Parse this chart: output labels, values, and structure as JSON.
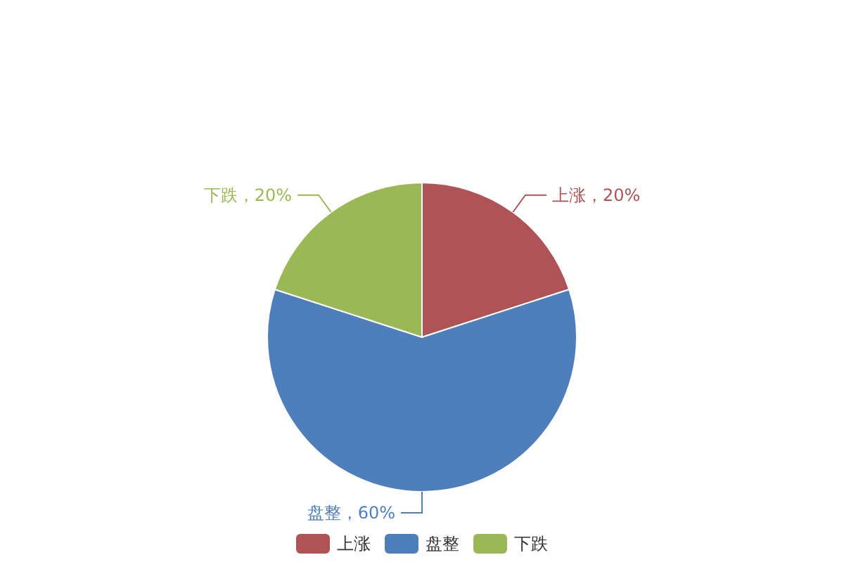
{
  "chart_data": {
    "type": "pie",
    "categories": [
      "上涨",
      "盘整",
      "下跌"
    ],
    "values": [
      20,
      60,
      20
    ],
    "colors": [
      "#ae5456",
      "#4e7fba",
      "#9bb857"
    ],
    "value_labels": [
      "上涨，20%",
      "盘整，60%",
      "下跌，20%"
    ],
    "legend": "bottom"
  }
}
